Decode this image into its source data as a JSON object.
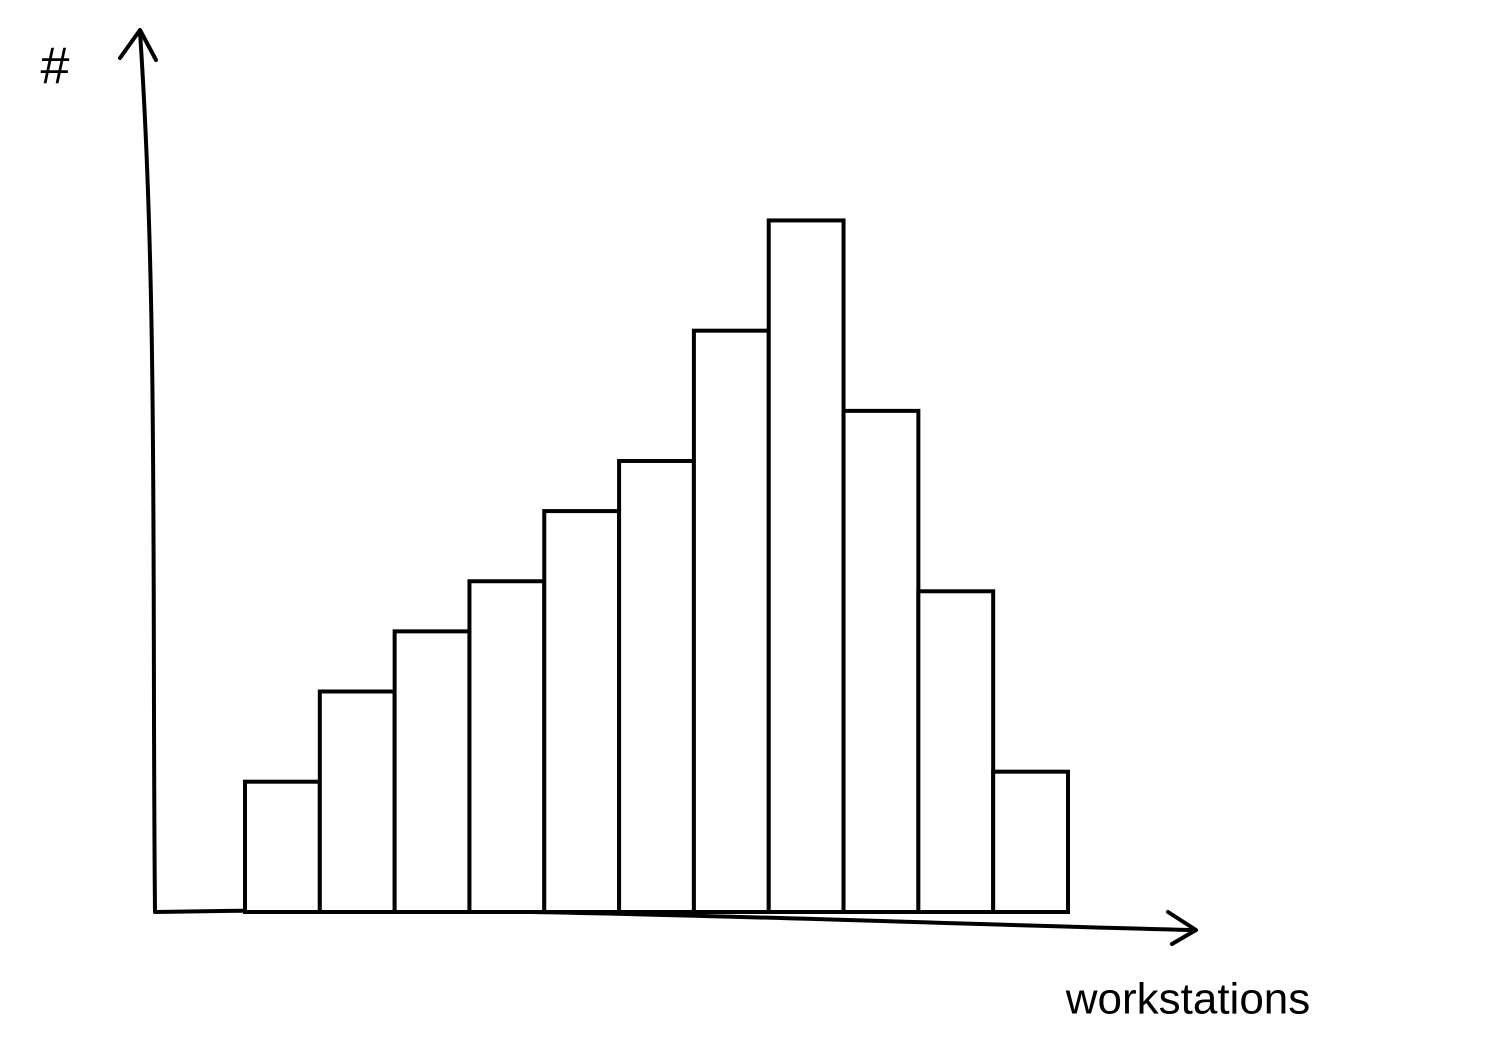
{
  "chart_data": {
    "type": "bar",
    "ylabel": "#",
    "xlabel": "workstations",
    "values": [
      1.3,
      2.2,
      2.8,
      3.3,
      4.0,
      4.5,
      5.8,
      6.9,
      5.0,
      3.2,
      1.4
    ],
    "color": "#ffffff",
    "edgecolor": "#000000",
    "ylim": [
      0,
      8.8
    ]
  }
}
